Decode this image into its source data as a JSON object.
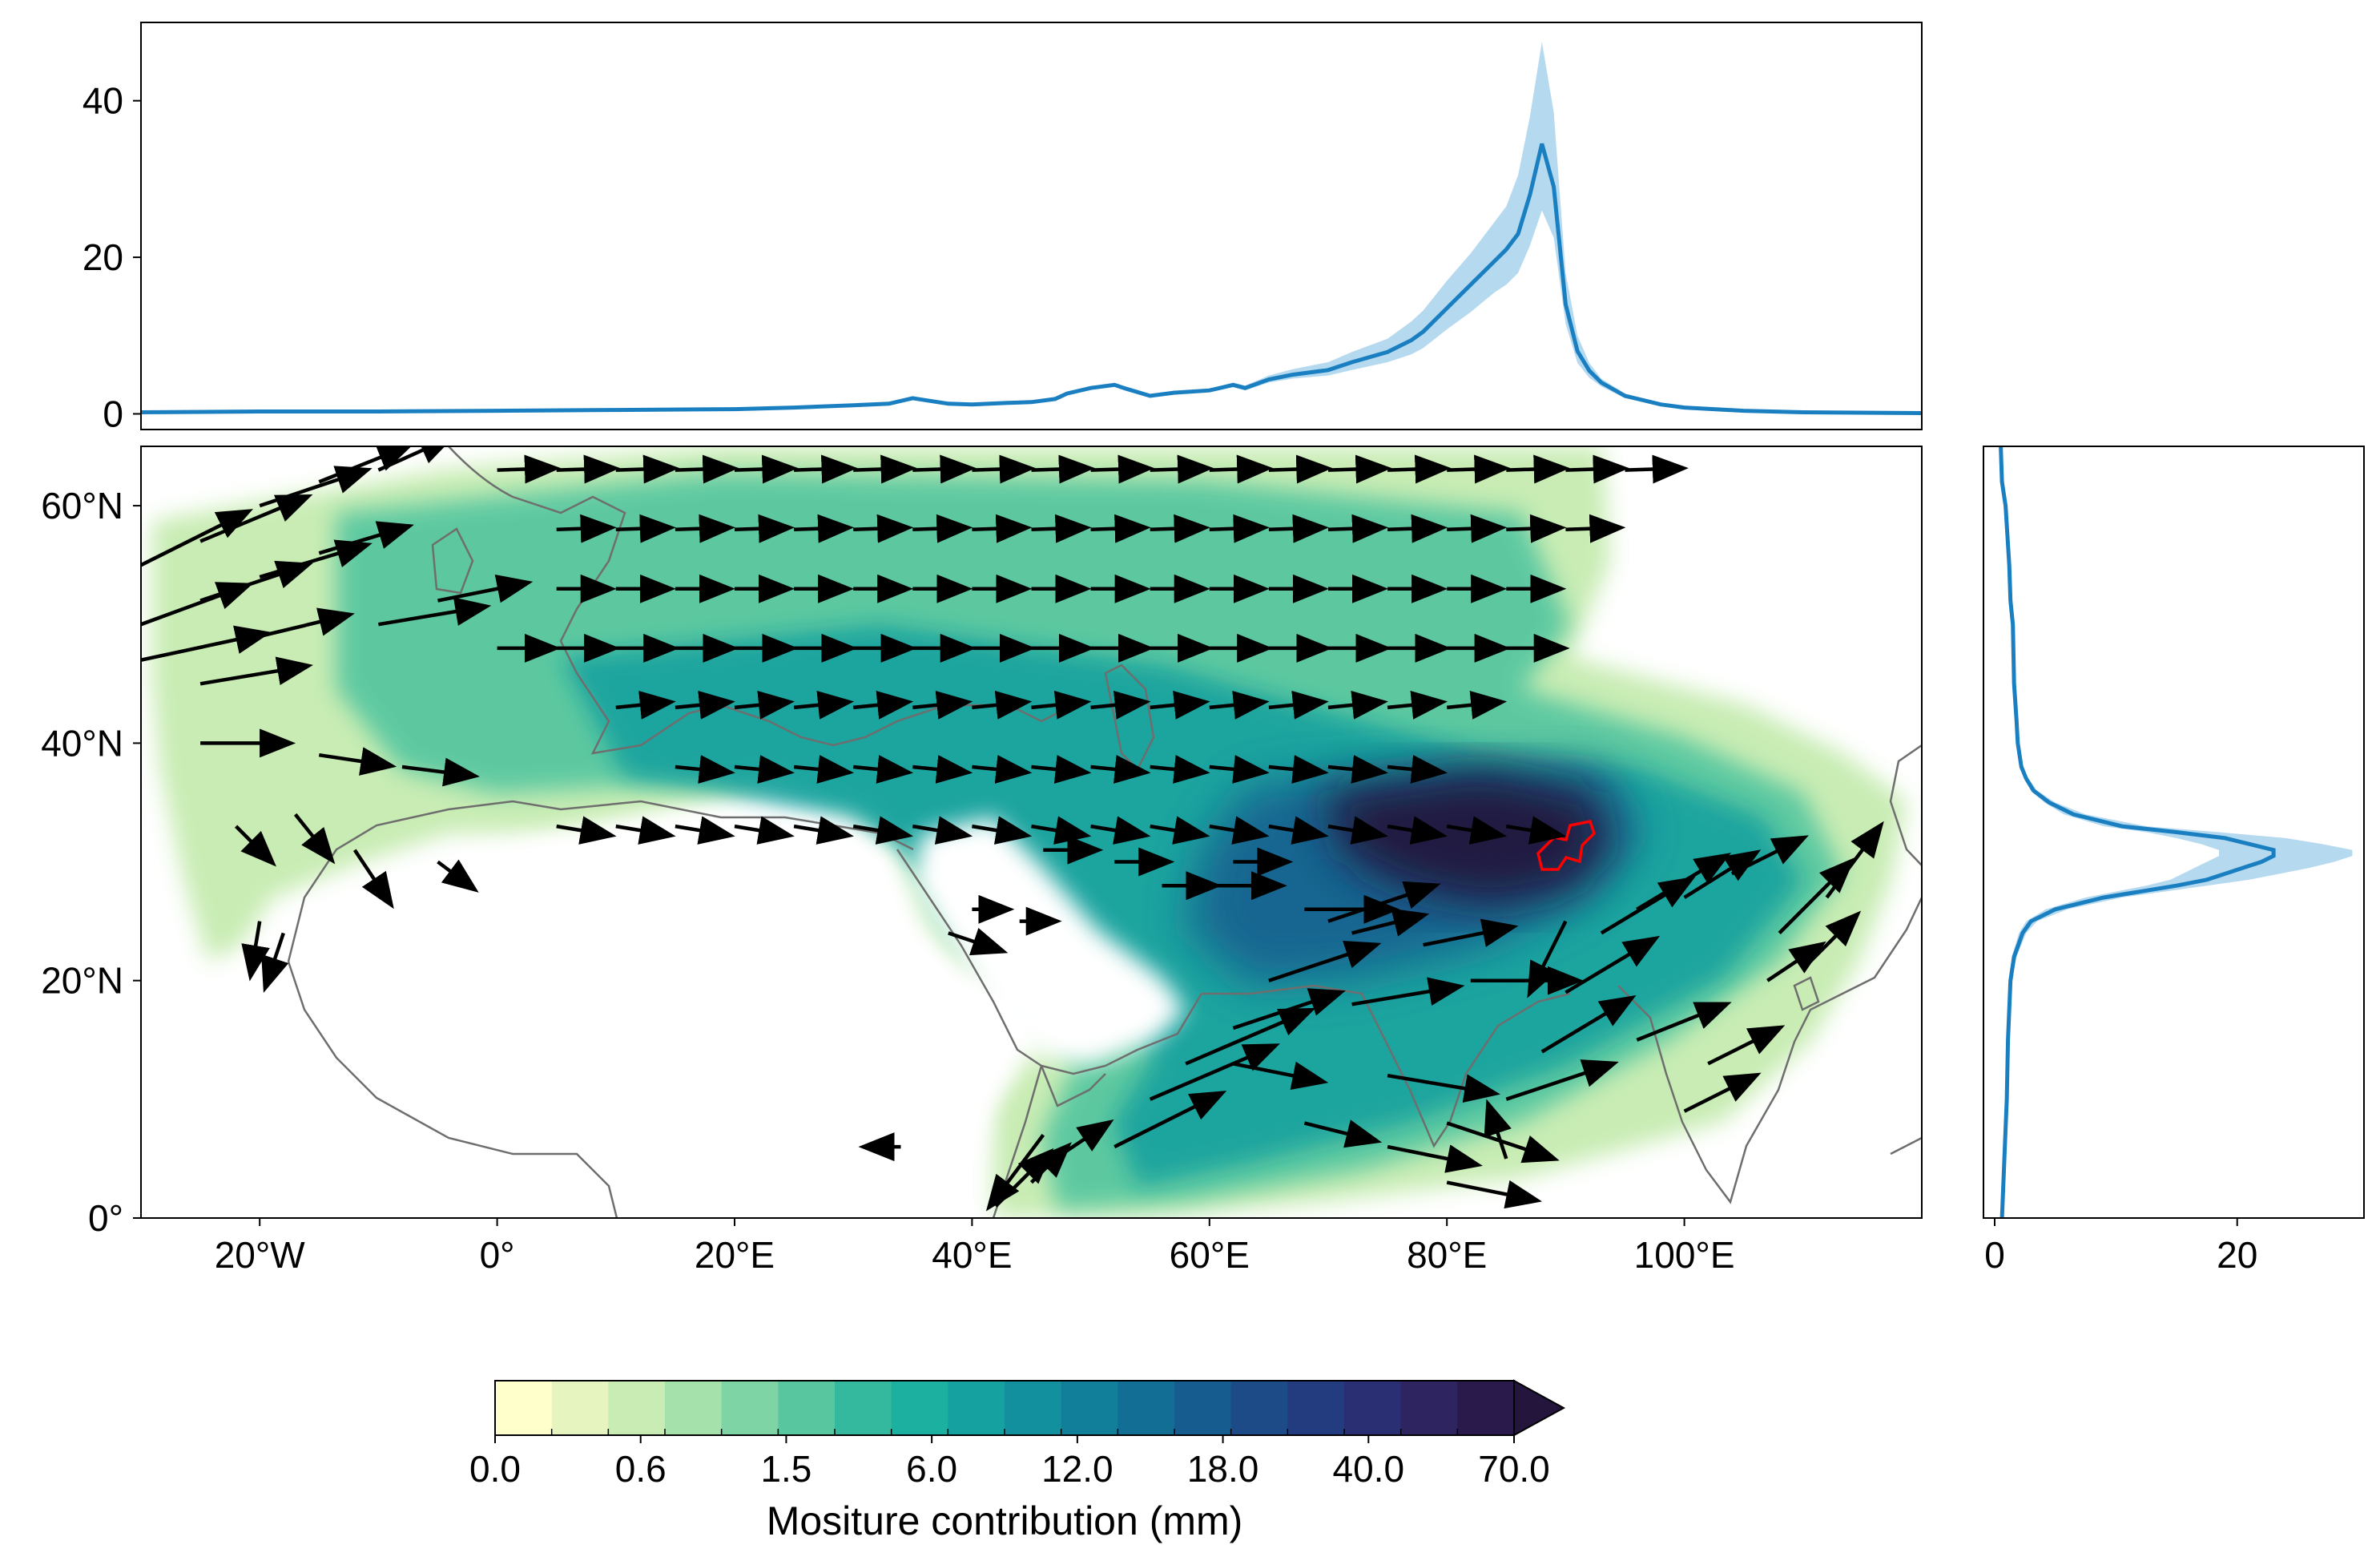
{
  "colors": {
    "line": "#1a7fc1",
    "band": "#a8d2ec",
    "arrow": "#000000",
    "coast": "#6e6e6e",
    "target": "#ff0000",
    "palette": [
      "#ffffcc",
      "#e6f5c0",
      "#c8ecb3",
      "#a4e1ab",
      "#7fd4a5",
      "#58c7a0",
      "#35b99e",
      "#1cb0a0",
      "#14a19f",
      "#12909d",
      "#117f9a",
      "#126e95",
      "#165c8f",
      "#1c4b88",
      "#233c80",
      "#2a2f74",
      "#2d2460",
      "#2a1a4b",
      "#24153d"
    ]
  },
  "colorbar": {
    "title": "Mositure contribution (mm)",
    "tick_labels": [
      "0.0",
      "0.6",
      "1.5",
      "6.0",
      "12.0",
      "18.0",
      "40.0",
      "70.0"
    ],
    "extend": "max"
  },
  "map": {
    "lon_ticks": [
      "20°W",
      "0°",
      "20°E",
      "40°E",
      "60°E",
      "80°E",
      "100°E"
    ],
    "lat_ticks": [
      "0°",
      "20°N",
      "40°N",
      "60°N"
    ],
    "lon_range": [
      -30,
      120
    ],
    "lat_range": [
      0,
      65
    ]
  },
  "chart_data": [
    {
      "type": "line",
      "xlim": [
        -30,
        120
      ],
      "ylim": [
        -2,
        50
      ],
      "ytick_labels": [
        "0",
        "20",
        "40"
      ],
      "series": [
        {
          "x": [
            -30,
            -20,
            -10,
            0,
            10,
            20,
            25,
            30,
            33,
            35,
            38,
            40,
            43,
            45,
            47,
            48,
            50,
            52,
            53,
            55,
            57,
            60,
            62,
            63,
            65,
            67,
            70,
            72,
            75,
            77,
            78,
            80,
            82,
            84,
            85,
            86,
            87,
            88,
            89,
            90,
            91,
            92,
            93,
            95,
            98,
            100,
            105,
            110,
            120
          ],
          "y": [
            0.2,
            0.3,
            0.3,
            0.4,
            0.5,
            0.6,
            0.8,
            1.1,
            1.3,
            2.0,
            1.3,
            1.2,
            1.4,
            1.5,
            1.9,
            2.6,
            3.3,
            3.7,
            3.2,
            2.3,
            2.7,
            3.0,
            3.7,
            3.3,
            4.4,
            5.0,
            5.6,
            6.6,
            7.9,
            9.4,
            10.5,
            13.5,
            16.5,
            19.5,
            21.0,
            23.0,
            28.0,
            34.5,
            29.0,
            14.0,
            8.0,
            5.5,
            4.0,
            2.3,
            1.2,
            0.8,
            0.4,
            0.2,
            0.1
          ],
          "upper": [
            0.2,
            0.3,
            0.3,
            0.4,
            0.5,
            0.6,
            0.8,
            1.1,
            1.3,
            2.0,
            1.3,
            1.2,
            1.4,
            1.5,
            1.9,
            2.6,
            3.4,
            3.9,
            3.3,
            2.4,
            2.8,
            3.2,
            4.0,
            3.6,
            4.9,
            5.7,
            6.6,
            7.9,
            9.6,
            11.8,
            13.2,
            17.0,
            20.5,
            24.5,
            26.5,
            30.5,
            38.0,
            47.5,
            38.5,
            18.0,
            10.0,
            6.5,
            4.5,
            2.6,
            1.3,
            0.9,
            0.4,
            0.2,
            0.1
          ],
          "lower": [
            0.2,
            0.3,
            0.3,
            0.4,
            0.5,
            0.6,
            0.8,
            1.1,
            1.3,
            2.0,
            1.3,
            1.2,
            1.4,
            1.5,
            1.9,
            2.6,
            3.2,
            3.5,
            3.1,
            2.2,
            2.6,
            2.8,
            3.4,
            3.0,
            4.0,
            4.5,
            4.9,
            5.6,
            6.6,
            7.6,
            8.4,
            10.8,
            13.0,
            15.5,
            16.5,
            18.0,
            21.5,
            26.0,
            22.5,
            11.5,
            6.5,
            4.6,
            3.5,
            2.0,
            1.0,
            0.7,
            0.3,
            0.2,
            0.1
          ]
        }
      ]
    },
    {
      "type": "line",
      "xlim": [
        0,
        30
      ],
      "ylim": [
        0,
        65
      ],
      "xtick_labels": [
        "0",
        "20"
      ],
      "series": [
        {
          "y": [
            0,
            5,
            10,
            15,
            20,
            22,
            24,
            25,
            26,
            27,
            28,
            28.5,
            29,
            29.5,
            30,
            30.5,
            31,
            31.5,
            32,
            32.5,
            33,
            34,
            35,
            36,
            37,
            38,
            40,
            42,
            45,
            50,
            52,
            55,
            60,
            62,
            65
          ],
          "x": [
            0.6,
            0.8,
            1.0,
            1.1,
            1.3,
            1.6,
            2.3,
            3.0,
            5.0,
            9.0,
            15.0,
            17.5,
            19.0,
            20.5,
            22.0,
            23.0,
            23.0,
            21.0,
            19.0,
            15.0,
            10.5,
            6.5,
            4.5,
            3.2,
            2.6,
            2.2,
            1.9,
            1.8,
            1.6,
            1.5,
            1.3,
            1.2,
            0.9,
            0.6,
            0.5
          ],
          "upper": [
            0.6,
            0.8,
            1.0,
            1.2,
            1.4,
            1.8,
            2.6,
            3.5,
            6.0,
            10.5,
            17.5,
            21.0,
            23.5,
            26.0,
            28.0,
            29.5,
            29.5,
            27.0,
            24.0,
            18.5,
            12.5,
            7.5,
            5.0,
            3.5,
            2.8,
            2.3,
            2.0,
            1.9,
            1.7,
            1.5,
            1.3,
            1.2,
            0.9,
            0.6,
            0.5
          ],
          "lower": [
            0.6,
            0.8,
            1.0,
            1.0,
            1.2,
            1.4,
            2.0,
            2.6,
            4.2,
            7.5,
            12.5,
            14.5,
            15.5,
            16.5,
            17.5,
            18.5,
            18.5,
            17.0,
            15.0,
            12.5,
            9.0,
            5.7,
            4.1,
            3.0,
            2.5,
            2.1,
            1.8,
            1.7,
            1.5,
            1.4,
            1.3,
            1.2,
            0.9,
            0.6,
            0.5
          ]
        }
      ]
    }
  ]
}
